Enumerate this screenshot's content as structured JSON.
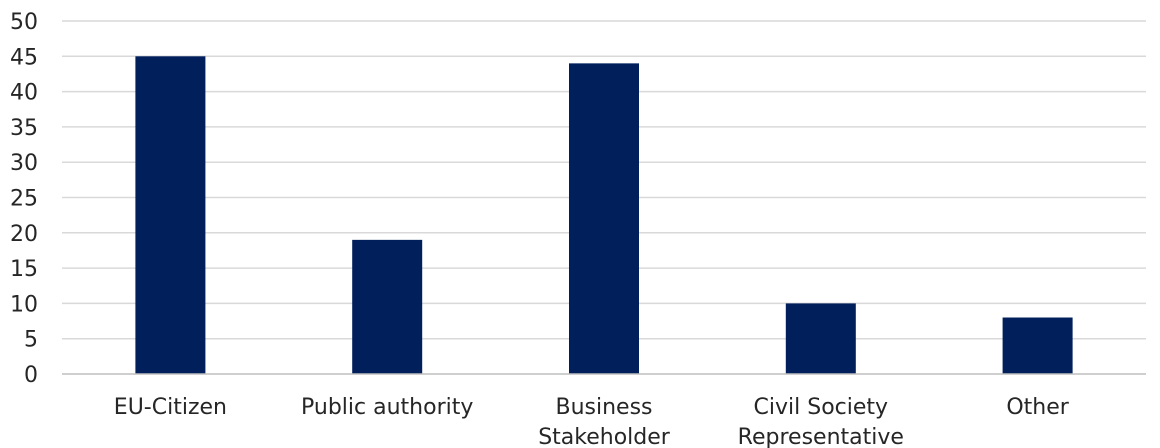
{
  "chart_data": {
    "type": "bar",
    "title": "",
    "xlabel": "",
    "ylabel": "",
    "categories": [
      [
        "EU-Citizen"
      ],
      [
        "Public authority"
      ],
      [
        "Business",
        "Stakeholder"
      ],
      [
        "Civil Society",
        "Representative"
      ],
      [
        "Other"
      ]
    ],
    "values": [
      45,
      19,
      44,
      10,
      8
    ],
    "ylim": [
      0,
      50
    ],
    "yticks": [
      0,
      5,
      10,
      15,
      20,
      25,
      30,
      35,
      40,
      45,
      50
    ],
    "grid": true,
    "legend": "none",
    "bar_color": "#001f5b"
  }
}
